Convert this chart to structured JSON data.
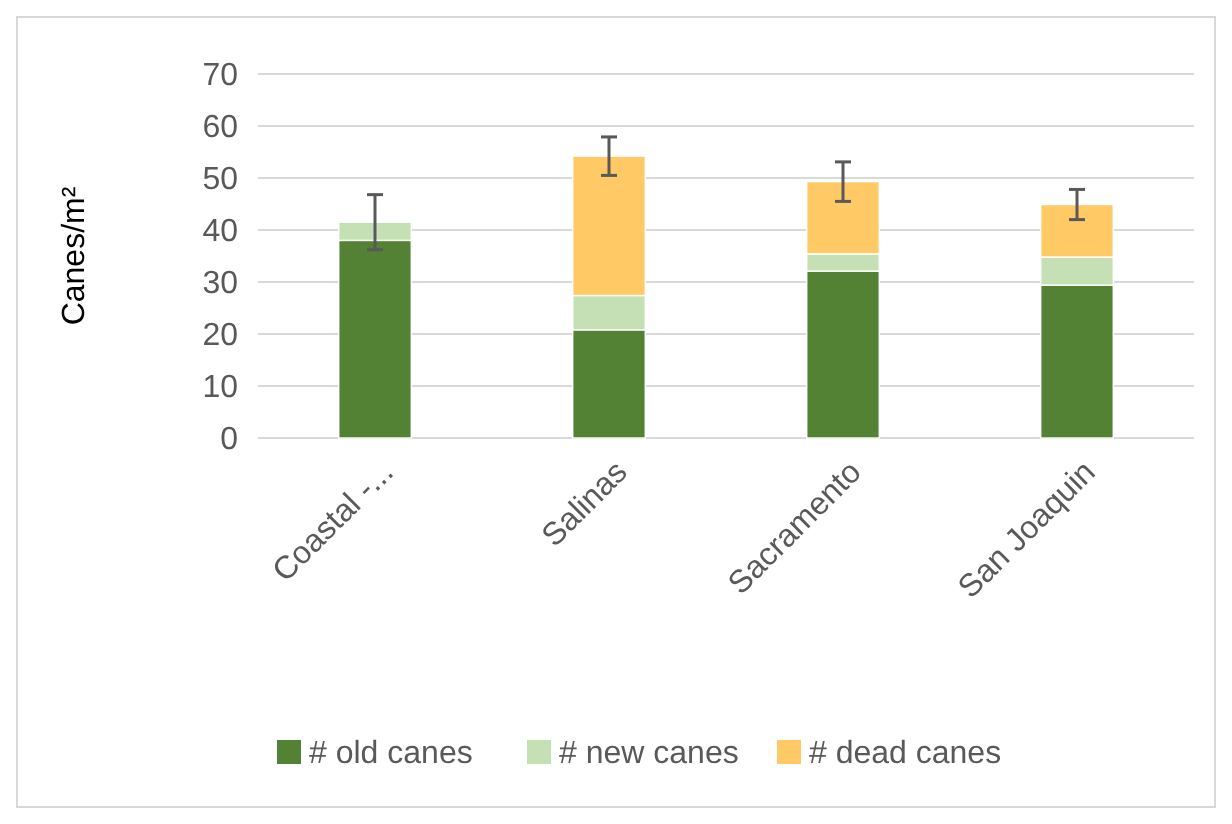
{
  "chart_data": {
    "type": "bar",
    "stacked": true,
    "ylabel": "Canes/m²",
    "categories": [
      "Coastal -...",
      "Salinas",
      "Sacramento",
      "San Joaquin"
    ],
    "series": [
      {
        "name": "# old canes",
        "color": "#548235",
        "values": [
          38.0,
          20.8,
          32.1,
          29.4
        ]
      },
      {
        "name": "# new canes",
        "color": "#c5e0b4",
        "values": [
          3.5,
          6.6,
          3.3,
          5.4
        ],
        "errors": [
          5.3,
          null,
          null,
          null
        ]
      },
      {
        "name": "# dead canes",
        "color": "#ffca65",
        "values": [
          null,
          26.8,
          13.9,
          10.1
        ],
        "errors": [
          null,
          3.7,
          3.8,
          2.9
        ]
      }
    ],
    "ylim": [
      0,
      70
    ],
    "yticks": [
      0,
      10,
      20,
      30,
      40,
      50,
      60,
      70
    ],
    "grid": "y",
    "legend": "bottom"
  }
}
